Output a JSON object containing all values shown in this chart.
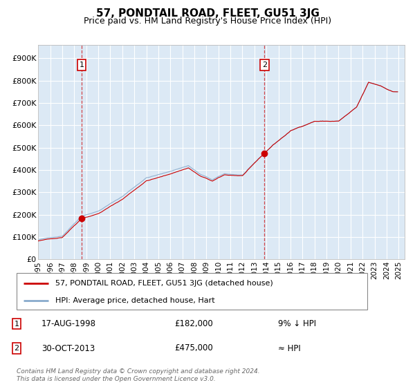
{
  "title": "57, PONDTAIL ROAD, FLEET, GU51 3JG",
  "subtitle": "Price paid vs. HM Land Registry's House Price Index (HPI)",
  "title_fontsize": 11,
  "subtitle_fontsize": 9,
  "ytick_labels": [
    "£0",
    "£100K",
    "£200K",
    "£300K",
    "£400K",
    "£500K",
    "£600K",
    "£700K",
    "£800K",
    "£900K"
  ],
  "yticks": [
    0,
    100000,
    200000,
    300000,
    400000,
    500000,
    600000,
    700000,
    800000,
    900000
  ],
  "ylim": [
    0,
    960000
  ],
  "xlim_start": 1995.0,
  "xlim_end": 2025.5,
  "background_color": "#dce9f5",
  "grid_color": "#ffffff",
  "red_color": "#cc0000",
  "blue_color": "#88aacc",
  "sale1_date": "17-AUG-1998",
  "sale1_price": "£182,000",
  "sale1_hpi": "9% ↓ HPI",
  "sale1_x": 1998.62,
  "sale1_y": 182000,
  "sale2_date": "30-OCT-2013",
  "sale2_price": "£475,000",
  "sale2_hpi": "≈ HPI",
  "sale2_x": 2013.83,
  "sale2_y": 475000,
  "legend_label_red": "57, PONDTAIL ROAD, FLEET, GU51 3JG (detached house)",
  "legend_label_blue": "HPI: Average price, detached house, Hart",
  "copyright_text": "Contains HM Land Registry data © Crown copyright and database right 2024.\nThis data is licensed under the Open Government Licence v3.0."
}
